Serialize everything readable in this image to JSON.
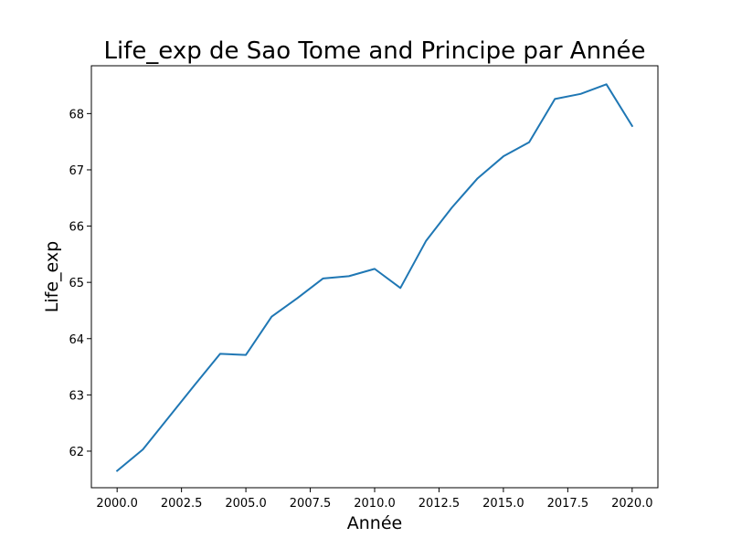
{
  "chart_data": {
    "type": "line",
    "title": "Life_exp de Sao Tome and Principe par Année",
    "xlabel": "Année",
    "ylabel": "Life_exp",
    "xlim": [
      1999,
      2021
    ],
    "ylim": [
      61.35,
      68.85
    ],
    "xticks": [
      2000.0,
      2002.5,
      2005.0,
      2007.5,
      2010.0,
      2012.5,
      2015.0,
      2017.5,
      2020.0
    ],
    "xtick_labels": [
      "2000.0",
      "2002.5",
      "2005.0",
      "2007.5",
      "2010.0",
      "2012.5",
      "2015.0",
      "2017.5",
      "2020.0"
    ],
    "yticks": [
      62,
      63,
      64,
      65,
      66,
      67,
      68
    ],
    "ytick_labels": [
      "62",
      "63",
      "64",
      "65",
      "66",
      "67",
      "68"
    ],
    "grid": false,
    "series": [
      {
        "color": "#1f77b4",
        "x": [
          2000,
          2001,
          2002,
          2003,
          2004,
          2005,
          2006,
          2007,
          2008,
          2009,
          2010,
          2011,
          2012,
          2013,
          2014,
          2015,
          2016,
          2017,
          2018,
          2019,
          2020
        ],
        "y": [
          61.65,
          62.03,
          62.6,
          63.17,
          63.73,
          63.71,
          64.39,
          64.72,
          65.07,
          65.11,
          65.24,
          64.9,
          65.74,
          66.33,
          66.85,
          67.24,
          67.49,
          68.26,
          68.35,
          68.52,
          67.78
        ]
      }
    ]
  }
}
